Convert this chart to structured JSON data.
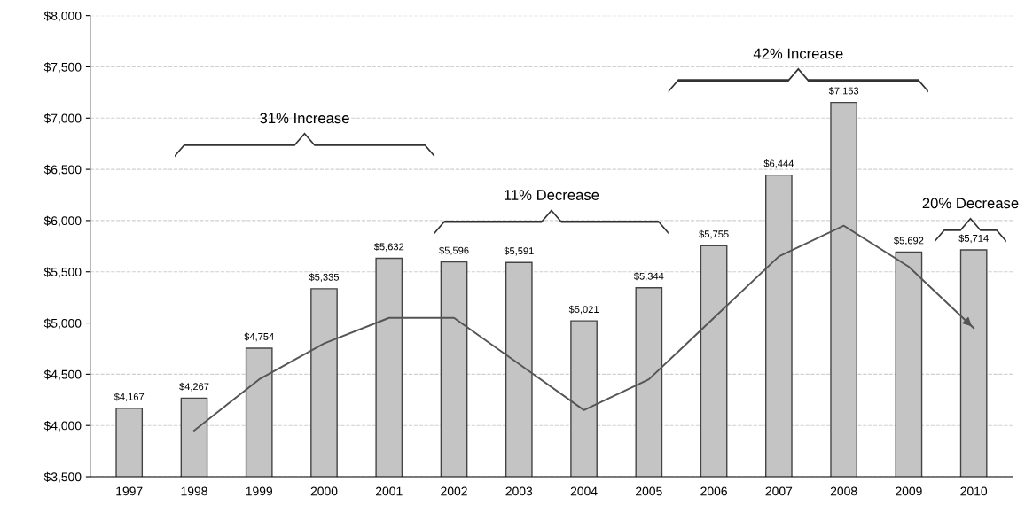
{
  "chart_data": {
    "type": "bar",
    "categories": [
      "1997",
      "1998",
      "1999",
      "2000",
      "2001",
      "2002",
      "2003",
      "2004",
      "2005",
      "2006",
      "2007",
      "2008",
      "2009",
      "2010"
    ],
    "series": [
      {
        "color": "#c4c4c4",
        "values": [
          4167,
          4267,
          4754,
          5335,
          5632,
          5596,
          5591,
          5021,
          5344,
          5755,
          6444,
          7153,
          5692,
          5714
        ],
        "value_labels": [
          "$4,167",
          "$4,267",
          "$4,754",
          "$5,335",
          "$5,632",
          "$5,596",
          "$5,591",
          "$5,021",
          "$5,344",
          "$5,755",
          "$6,444",
          "$7,153",
          "$5,692",
          "$5,714"
        ]
      },
      {
        "type": "line",
        "color": "#555555",
        "values": [
          null,
          3950,
          4450,
          4800,
          5050,
          5050,
          4600,
          4150,
          4450,
          5050,
          5650,
          5950,
          5550,
          4950
        ]
      }
    ],
    "ylim": [
      3500,
      8000
    ],
    "yticks": [
      {
        "value": 3500,
        "label": "$3,500"
      },
      {
        "value": 4000,
        "label": "$4,000"
      },
      {
        "value": 4500,
        "label": "$4,500"
      },
      {
        "value": 5000,
        "label": "$5,000"
      },
      {
        "value": 5500,
        "label": "$5,500"
      },
      {
        "value": 6000,
        "label": "$6,000"
      },
      {
        "value": 6500,
        "label": "$6,500"
      },
      {
        "value": 7000,
        "label": "$7,000"
      },
      {
        "value": 7500,
        "label": "$7,500"
      },
      {
        "value": 8000,
        "label": "$8,000"
      }
    ],
    "grid": "y",
    "annotations": [
      "31% Increase",
      "11% Decrease",
      "42% Increase",
      "20% Decrease"
    ]
  }
}
